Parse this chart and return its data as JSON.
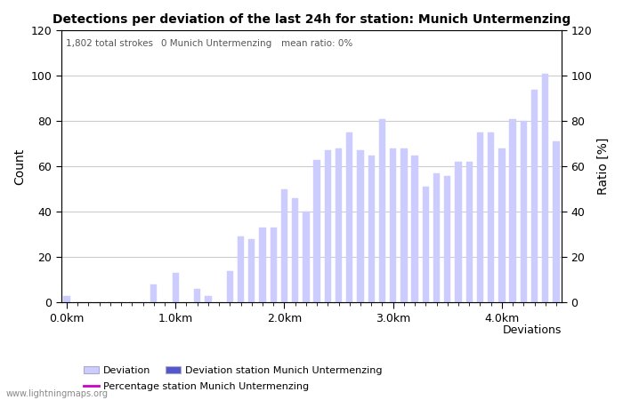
{
  "title": "Detections per deviation of the last 24h for station: Munich Untermenzing",
  "subtitle_strokes": "1,802 total strokes",
  "subtitle_station": "0 Munich Untermenzing",
  "subtitle_ratio": "mean ratio: 0%",
  "xlabel": "Deviations",
  "ylabel_left": "Count",
  "ylabel_right": "Ratio [%]",
  "ylim": [
    0,
    120
  ],
  "xtick_positions": [
    0,
    10,
    20,
    30,
    40
  ],
  "xtick_labels": [
    "0.0km",
    "1.0km",
    "2.0km",
    "3.0km",
    "4.0km"
  ],
  "ytick_positions": [
    0,
    20,
    40,
    60,
    80,
    100,
    120
  ],
  "bar_values": [
    3,
    0,
    0,
    0,
    0,
    0,
    0,
    0,
    8,
    0,
    13,
    0,
    6,
    3,
    0,
    14,
    29,
    28,
    33,
    33,
    50,
    46,
    40,
    63,
    67,
    68,
    75,
    67,
    65,
    81,
    68,
    68,
    65,
    51,
    57,
    56,
    62,
    62,
    75,
    75,
    68,
    81,
    80,
    94,
    101,
    71
  ],
  "bar_color_light": "#ccccff",
  "bar_color_dark": "#5555cc",
  "grid_color": "#cccccc",
  "background_color": "#ffffff",
  "watermark": "www.lightningmaps.org",
  "legend_deviation_label": "Deviation",
  "legend_station_label": "Deviation station Munich Untermenzing",
  "legend_pct_label": "Percentage station Munich Untermenzing",
  "magenta": "#cc00cc",
  "title_fontsize": 10,
  "axis_fontsize": 9,
  "subtitle_fontsize": 7.5,
  "watermark_fontsize": 7
}
